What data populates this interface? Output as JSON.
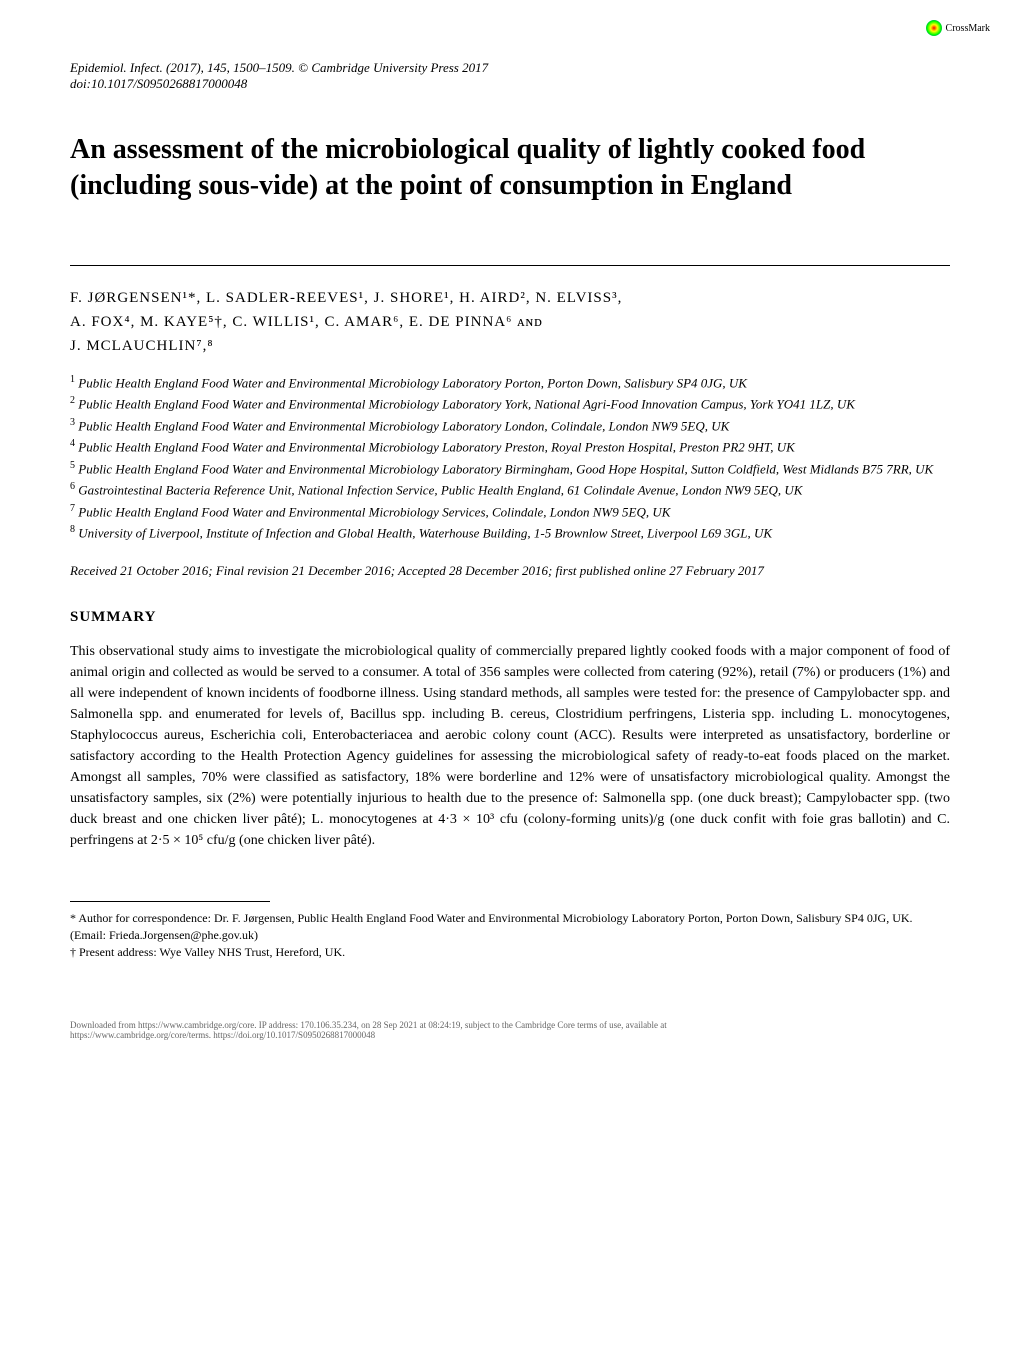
{
  "crossmark": "CrossMark",
  "journal_header": "Epidemiol. Infect. (2017), 145, 1500–1509.   © Cambridge University Press 2017",
  "doi": "doi:10.1017/S0950268817000048",
  "title": "An assessment of the microbiological quality of lightly cooked food (including sous-vide) at the point of consumption in England",
  "authors_line1": "F. JØRGENSEN¹*, L. SADLER-REEVES¹, J. SHORE¹, H. AIRD², N. ELVISS³,",
  "authors_line2": "A. FOX⁴, M. KAYE⁵†, C. WILLIS¹, C. AMAR⁶, E. DE PINNA⁶ ᴀɴᴅ",
  "authors_line3": "J. MCLAUCHLIN⁷,⁸",
  "affiliations": [
    {
      "num": "1",
      "text": "Public Health England Food Water and Environmental Microbiology Laboratory Porton, Porton Down, Salisbury SP4 0JG, UK"
    },
    {
      "num": "2",
      "text": "Public Health England Food Water and Environmental Microbiology Laboratory York, National Agri-Food Innovation Campus, York YO41 1LZ, UK"
    },
    {
      "num": "3",
      "text": "Public Health England Food Water and Environmental Microbiology Laboratory London, Colindale, London NW9 5EQ, UK"
    },
    {
      "num": "4",
      "text": "Public Health England Food Water and Environmental Microbiology Laboratory Preston, Royal Preston Hospital, Preston PR2 9HT, UK"
    },
    {
      "num": "5",
      "text": "Public Health England Food Water and Environmental Microbiology Laboratory Birmingham, Good Hope Hospital, Sutton Coldfield, West Midlands B75 7RR, UK"
    },
    {
      "num": "6",
      "text": "Gastrointestinal Bacteria Reference Unit, National Infection Service, Public Health England, 61 Colindale Avenue, London NW9 5EQ, UK"
    },
    {
      "num": "7",
      "text": "Public Health England Food Water and Environmental Microbiology Services, Colindale, London NW9 5EQ, UK"
    },
    {
      "num": "8",
      "text": "University of Liverpool, Institute of Infection and Global Health, Waterhouse Building, 1-5 Brownlow Street, Liverpool L69 3GL, UK"
    }
  ],
  "received": "Received 21 October 2016; Final revision 21 December 2016; Accepted 28 December 2016; first published online 27 February 2017",
  "summary_heading": "SUMMARY",
  "summary_text": "This observational study aims to investigate the microbiological quality of commercially prepared lightly cooked foods with a major component of food of animal origin and collected as would be served to a consumer. A total of 356 samples were collected from catering (92%), retail (7%) or producers (1%) and all were independent of known incidents of foodborne illness. Using standard methods, all samples were tested for: the presence of Campylobacter spp. and Salmonella spp. and enumerated for levels of, Bacillus spp. including B. cereus, Clostridium perfringens, Listeria spp. including L. monocytogenes, Staphylococcus aureus, Escherichia coli, Enterobacteriacea and aerobic colony count (ACC). Results were interpreted as unsatisfactory, borderline or satisfactory according to the Health Protection Agency guidelines for assessing the microbiological safety of ready-to-eat foods placed on the market. Amongst all samples, 70% were classified as satisfactory, 18% were borderline and 12% were of unsatisfactory microbiological quality. Amongst the unsatisfactory samples, six (2%) were potentially injurious to health due to the presence of: Salmonella spp. (one duck breast); Campylobacter spp. (two duck breast and one chicken liver pâté); L. monocytogenes at 4·3 × 10³ cfu (colony-forming units)/g (one duck confit with foie gras ballotin) and C. perfringens at 2·5 × 10⁵ cfu/g (one chicken liver pâté).",
  "footnote1": "* Author for correspondence: Dr. F. Jørgensen, Public Health England Food Water and Environmental Microbiology Laboratory Porton, Porton Down, Salisbury SP4 0JG, UK.",
  "footnote2": "(Email: Frieda.Jorgensen@phe.gov.uk)",
  "footnote3": "† Present address: Wye Valley NHS Trust, Hereford, UK.",
  "download_line1": "Downloaded from https://www.cambridge.org/core. IP address: 170.106.35.234, on 28 Sep 2021 at 08:24:19, subject to the Cambridge Core terms of use, available at",
  "download_line2": "https://www.cambridge.org/core/terms. https://doi.org/10.1017/S0950268817000048"
}
